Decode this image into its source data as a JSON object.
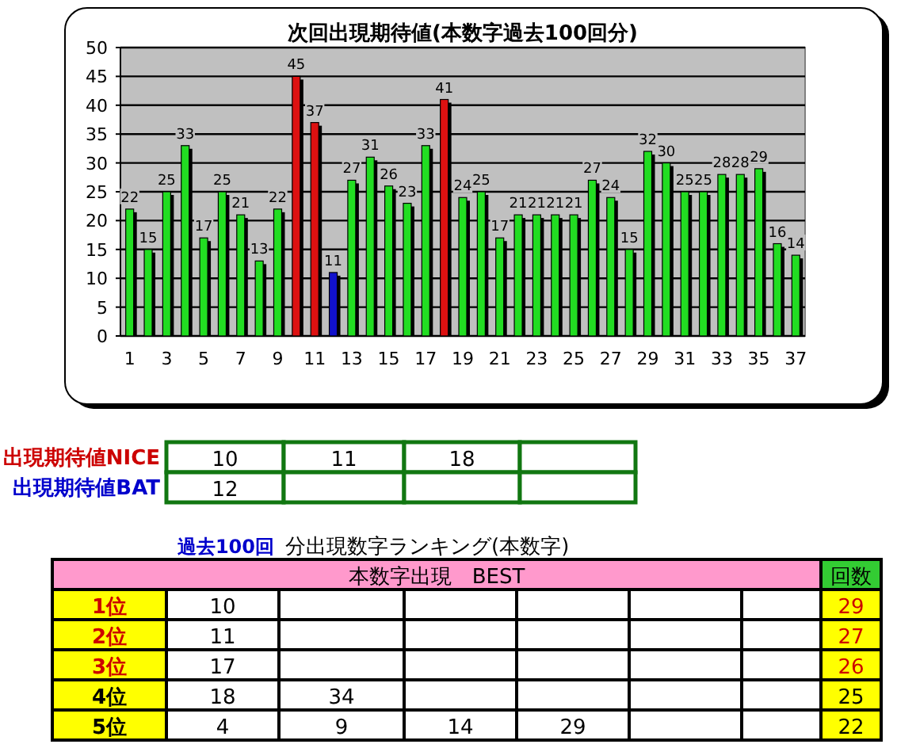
{
  "chart_data": {
    "type": "bar",
    "title": "次回出現期待値(本数字過去100回分)",
    "categories": [
      "1",
      null,
      "3",
      null,
      "5",
      null,
      "7",
      null,
      "9",
      null,
      "11",
      null,
      "13",
      null,
      "15",
      null,
      "17",
      null,
      "19",
      null,
      "21",
      null,
      "23",
      null,
      "25",
      null,
      "27",
      null,
      "29",
      null,
      "31",
      null,
      "33",
      null,
      "35",
      null,
      "37"
    ],
    "values": [
      22,
      15,
      25,
      33,
      17,
      25,
      21,
      13,
      22,
      45,
      37,
      11,
      27,
      31,
      26,
      23,
      33,
      41,
      24,
      25,
      17,
      21,
      21,
      21,
      21,
      27,
      24,
      15,
      32,
      30,
      25,
      25,
      28,
      28,
      29,
      16,
      14
    ],
    "colors": [
      "#22dd22",
      "#22dd22",
      "#22dd22",
      "#22dd22",
      "#22dd22",
      "#22dd22",
      "#22dd22",
      "#22dd22",
      "#22dd22",
      "#dd1111",
      "#dd1111",
      "#1111cc",
      "#22dd22",
      "#22dd22",
      "#22dd22",
      "#22dd22",
      "#22dd22",
      "#dd1111",
      "#22dd22",
      "#22dd22",
      "#22dd22",
      "#22dd22",
      "#22dd22",
      "#22dd22",
      "#22dd22",
      "#22dd22",
      "#22dd22",
      "#22dd22",
      "#22dd22",
      "#22dd22",
      "#22dd22",
      "#22dd22",
      "#22dd22",
      "#22dd22",
      "#22dd22",
      "#22dd22",
      "#22dd22"
    ],
    "ylim": [
      0,
      50
    ],
    "yticks": [
      0,
      5,
      10,
      15,
      20,
      25,
      30,
      35,
      40,
      45,
      50
    ],
    "grid": "y",
    "data_labels": true,
    "annotations": [
      "出現期待値NICE",
      "10",
      "11",
      "18",
      "出現期待値BAT",
      "12",
      "過去100回",
      "分出現数字ランキング(本数字)",
      "本数字出現　BEST",
      "回数",
      "1位",
      "10",
      "29",
      "2位",
      "11",
      "27",
      "3位",
      "17",
      "26",
      "4位",
      "18",
      "34",
      "25",
      "5位",
      "4",
      "9",
      "14",
      "29",
      "22"
    ]
  }
}
